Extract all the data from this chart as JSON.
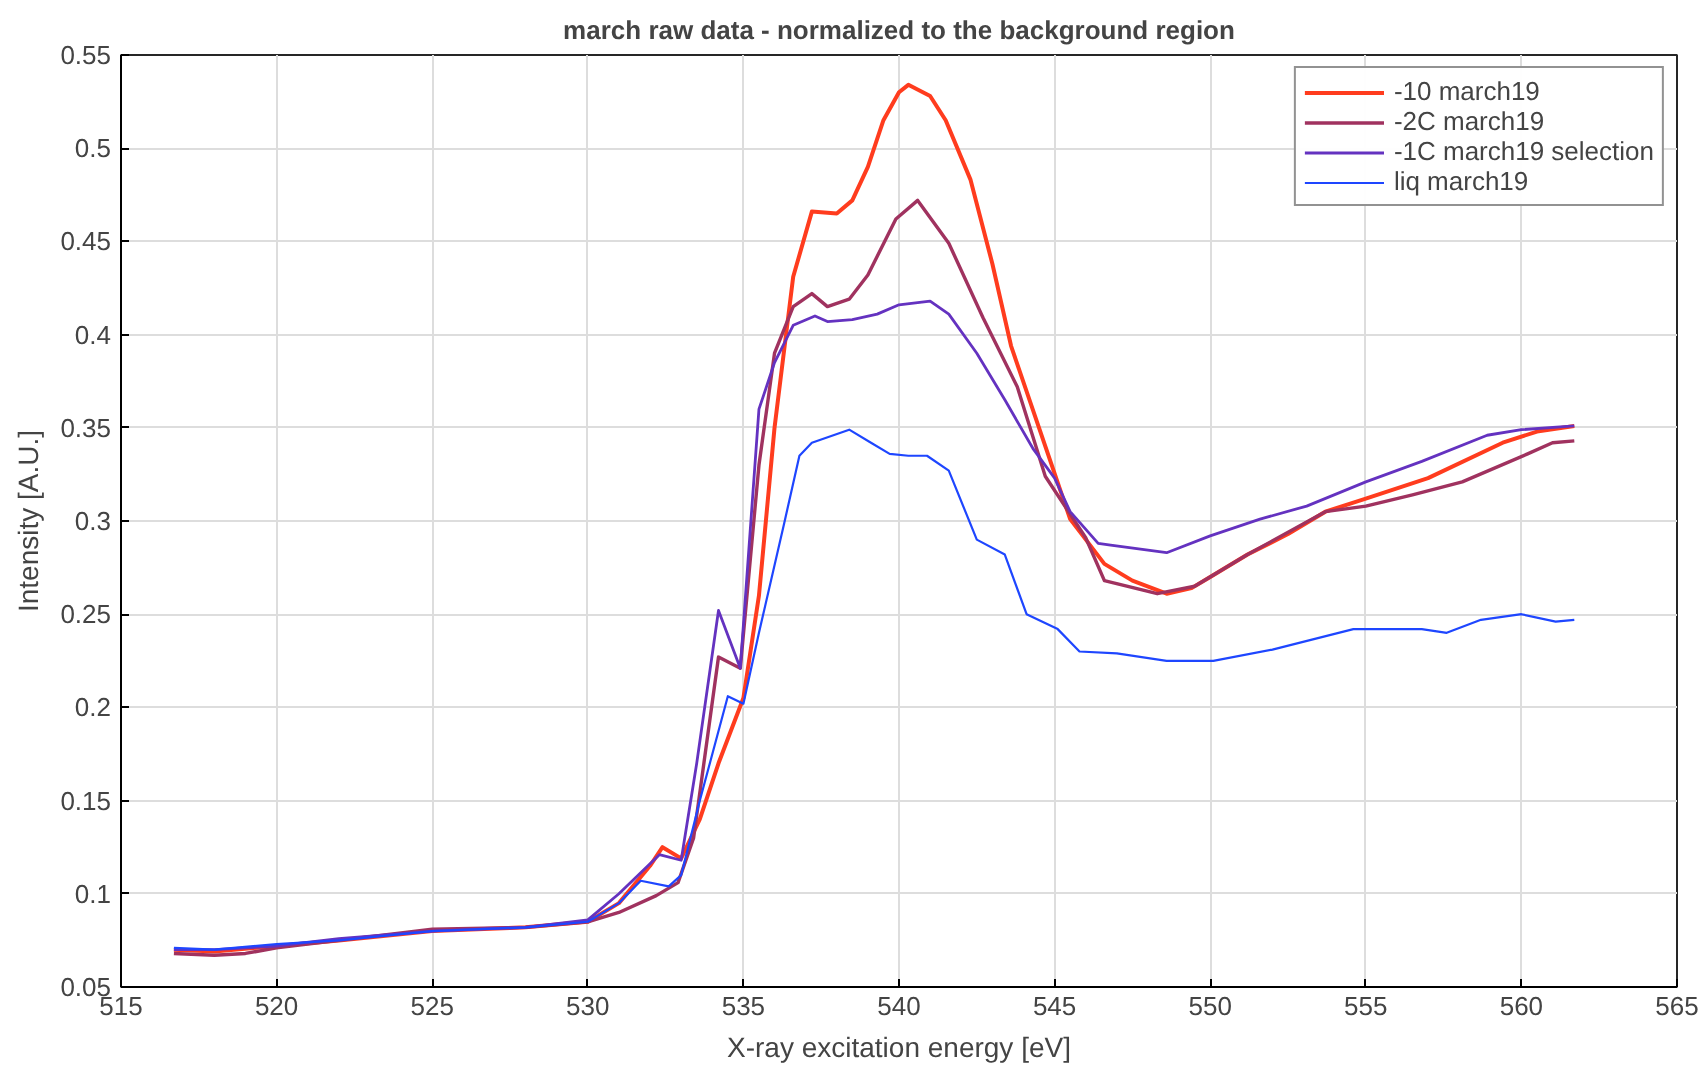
{
  "chart_data": {
    "type": "line",
    "title": "march raw data - normalized to the background region",
    "xlabel": "X-ray excitation energy [eV]",
    "ylabel": "Intensity [A.U.]",
    "xlim": [
      515,
      565
    ],
    "ylim": [
      0.05,
      0.55
    ],
    "xticks": [
      515,
      520,
      525,
      530,
      535,
      540,
      545,
      550,
      555,
      560,
      565
    ],
    "yticks": [
      0.05,
      0.1,
      0.15,
      0.2,
      0.25,
      0.3,
      0.35,
      0.4,
      0.45,
      0.5,
      0.55
    ],
    "grid": true,
    "legend": "top right",
    "line_style": "solid",
    "marker": "none",
    "series": [
      {
        "name": "-10 march19",
        "color": "#ff3c1e",
        "x": [
          516.7,
          518,
          520,
          522,
          525,
          528,
          530,
          531,
          532,
          532.4,
          533,
          533.6,
          534.2,
          535,
          535.5,
          536,
          536.6,
          537.2,
          538,
          538.5,
          539,
          539.5,
          540,
          540.3,
          541,
          541.5,
          542.3,
          543,
          543.6,
          544.5,
          545.5,
          546.6,
          547.5,
          548.6,
          549.4,
          550,
          551.2,
          552.5,
          553.7,
          555,
          557,
          559.4,
          560.5,
          561.7
        ],
        "values": [
          0.07,
          0.069,
          0.072,
          0.075,
          0.08,
          0.082,
          0.085,
          0.095,
          0.115,
          0.125,
          0.119,
          0.14,
          0.17,
          0.205,
          0.26,
          0.35,
          0.431,
          0.466,
          0.465,
          0.472,
          0.49,
          0.515,
          0.53,
          0.534,
          0.528,
          0.515,
          0.483,
          0.438,
          0.394,
          0.35,
          0.301,
          0.277,
          0.268,
          0.261,
          0.264,
          0.27,
          0.282,
          0.293,
          0.305,
          0.312,
          0.323,
          0.342,
          0.348,
          0.351
        ]
      },
      {
        "name": "-2C march19",
        "color": "#a0325f",
        "x": [
          516.7,
          518,
          519,
          520,
          522,
          525,
          528,
          530,
          531,
          532.2,
          532.9,
          533.4,
          534.2,
          534.9,
          535.5,
          536,
          536.6,
          537.2,
          537.7,
          538.4,
          539,
          539.9,
          540.6,
          541.6,
          542.7,
          543.8,
          544.7,
          546,
          546.6,
          548.3,
          549.5,
          551.2,
          553.7,
          555,
          556.5,
          558.1,
          560.2,
          561,
          561.7
        ],
        "values": [
          0.068,
          0.067,
          0.068,
          0.071,
          0.075,
          0.081,
          0.082,
          0.085,
          0.09,
          0.099,
          0.106,
          0.13,
          0.227,
          0.221,
          0.33,
          0.39,
          0.415,
          0.422,
          0.415,
          0.419,
          0.432,
          0.462,
          0.472,
          0.449,
          0.409,
          0.372,
          0.324,
          0.291,
          0.268,
          0.261,
          0.265,
          0.282,
          0.305,
          0.308,
          0.314,
          0.321,
          0.336,
          0.342,
          0.343
        ]
      },
      {
        "name": "-1C march19 selection",
        "color": "#6432c0",
        "x": [
          516.7,
          518,
          520,
          522,
          525,
          528,
          530,
          531,
          532.3,
          533,
          533.5,
          534.2,
          534.9,
          535.5,
          536,
          536.6,
          537.3,
          537.7,
          538.5,
          539.3,
          540,
          541,
          541.6,
          542.5,
          543.4,
          544.3,
          545,
          545.5,
          546.4,
          546.8,
          548.6,
          550,
          551.6,
          553.1,
          555,
          556.8,
          558.9,
          560,
          561.7
        ],
        "values": [
          0.07,
          0.07,
          0.072,
          0.076,
          0.08,
          0.082,
          0.086,
          0.1,
          0.121,
          0.118,
          0.17,
          0.252,
          0.221,
          0.36,
          0.385,
          0.405,
          0.41,
          0.407,
          0.408,
          0.411,
          0.416,
          0.418,
          0.411,
          0.39,
          0.365,
          0.339,
          0.323,
          0.305,
          0.288,
          0.287,
          0.283,
          0.292,
          0.301,
          0.308,
          0.321,
          0.332,
          0.346,
          0.349,
          0.351
        ]
      },
      {
        "name": "liq march19",
        "color": "#1e46ff",
        "x": [
          516.7,
          518,
          520,
          522,
          525,
          528,
          530,
          531,
          531.7,
          532.6,
          533,
          533.6,
          534.5,
          535,
          535.5,
          536.3,
          536.8,
          537.2,
          538.4,
          539.1,
          539.7,
          540.3,
          540.9,
          541.6,
          542.5,
          543.4,
          544.1,
          545.1,
          545.8,
          547,
          548.6,
          550.1,
          552,
          554.6,
          556.8,
          557.6,
          558.7,
          560,
          561.1,
          561.7
        ],
        "values": [
          0.071,
          0.07,
          0.073,
          0.075,
          0.08,
          0.082,
          0.085,
          0.095,
          0.107,
          0.104,
          0.11,
          0.15,
          0.206,
          0.202,
          0.24,
          0.298,
          0.335,
          0.342,
          0.349,
          0.342,
          0.336,
          0.335,
          0.335,
          0.327,
          0.29,
          0.282,
          0.25,
          0.242,
          0.23,
          0.229,
          0.225,
          0.225,
          0.231,
          0.242,
          0.242,
          0.24,
          0.247,
          0.25,
          0.246,
          0.247
        ]
      }
    ]
  }
}
